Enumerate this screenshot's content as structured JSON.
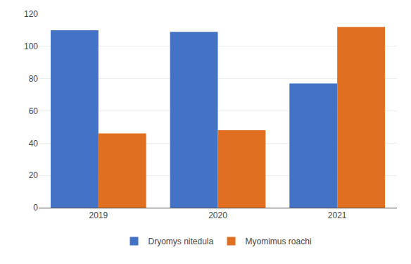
{
  "chart_data": {
    "type": "bar",
    "categories": [
      "2019",
      "2020",
      "2021"
    ],
    "series": [
      {
        "name": "Dryomys nitedula",
        "color": "#4472C4",
        "values": [
          110,
          109,
          77
        ]
      },
      {
        "name": "Myomimus roachi",
        "color": "#E07020",
        "values": [
          46,
          48,
          112
        ]
      }
    ],
    "ylim": [
      0,
      120
    ],
    "yticks": [
      0,
      20,
      40,
      60,
      80,
      100,
      120
    ],
    "grid": true,
    "legend": "bottom"
  }
}
